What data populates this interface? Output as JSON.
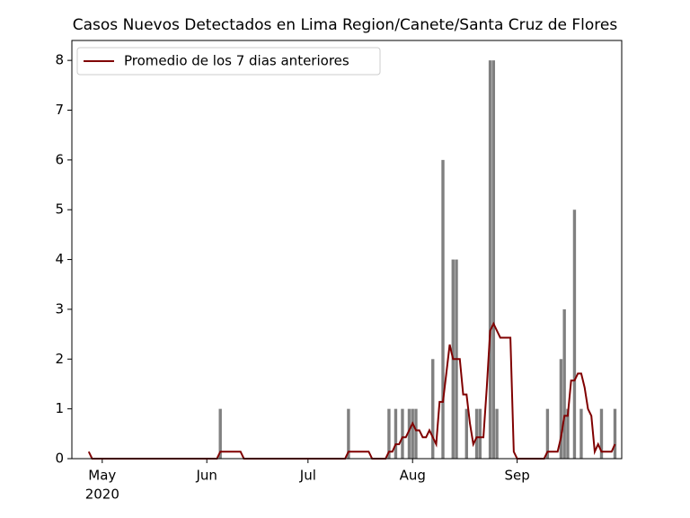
{
  "chart_data": {
    "type": "bar",
    "title": "Casos Nuevos Detectados en Lima Region/Canete/Santa Cruz de Flores",
    "categories": [
      null,
      null,
      null,
      null,
      "May",
      null,
      null,
      null,
      null,
      null,
      null,
      null,
      null,
      null,
      null,
      null,
      null,
      null,
      null,
      null,
      null,
      null,
      null,
      null,
      null,
      null,
      null,
      null,
      null,
      null,
      null,
      null,
      null,
      null,
      null,
      "Jun",
      null,
      null,
      null,
      null,
      null,
      null,
      null,
      null,
      null,
      null,
      null,
      null,
      null,
      null,
      null,
      null,
      null,
      null,
      null,
      null,
      null,
      null,
      null,
      null,
      null,
      null,
      null,
      null,
      null,
      "Jul",
      null,
      null,
      null,
      null,
      null,
      null,
      null,
      null,
      null,
      null,
      null,
      null,
      null,
      null,
      null,
      null,
      null,
      null,
      null,
      null,
      null,
      null,
      null,
      null,
      null,
      null,
      null,
      null,
      null,
      null,
      "Aug",
      null,
      null,
      null,
      null,
      null,
      null,
      null,
      null,
      null,
      null,
      null,
      null,
      null,
      null,
      null,
      null,
      null,
      null,
      null,
      null,
      null,
      null,
      null,
      null,
      null,
      null,
      null,
      null,
      null,
      null,
      "Sep",
      null,
      null,
      null,
      null,
      null,
      null,
      null,
      null,
      null,
      null,
      null,
      null,
      null,
      null,
      null,
      null,
      null,
      null,
      null,
      null,
      null,
      null,
      null,
      null,
      null,
      null,
      null,
      null,
      null
    ],
    "year_label": "2020",
    "values": [
      0,
      0,
      0,
      0,
      0,
      0,
      0,
      0,
      0,
      0,
      0,
      0,
      0,
      0,
      0,
      0,
      0,
      0,
      0,
      0,
      0,
      0,
      0,
      0,
      0,
      0,
      0,
      0,
      0,
      0,
      0,
      0,
      0,
      0,
      0,
      0,
      0,
      0,
      0,
      1,
      0,
      0,
      0,
      0,
      0,
      0,
      0,
      0,
      0,
      0,
      0,
      0,
      0,
      0,
      0,
      0,
      0,
      0,
      0,
      0,
      0,
      0,
      0,
      0,
      0,
      0,
      0,
      0,
      0,
      0,
      0,
      0,
      0,
      0,
      0,
      0,
      0,
      1,
      0,
      0,
      0,
      0,
      0,
      0,
      0,
      0,
      0,
      0,
      0,
      1,
      0,
      1,
      0,
      1,
      0,
      1,
      1,
      1,
      0,
      0,
      0,
      0,
      2,
      0,
      0,
      6,
      0,
      0,
      4,
      4,
      0,
      0,
      1,
      0,
      0,
      1,
      1,
      0,
      0,
      8,
      8,
      1,
      0,
      0,
      0,
      0,
      0,
      0,
      0,
      0,
      0,
      0,
      0,
      0,
      0,
      0,
      1,
      0,
      0,
      0,
      2,
      3,
      1,
      0,
      5,
      0,
      1,
      0,
      0,
      0,
      0,
      0,
      1,
      0,
      0,
      0,
      1
    ],
    "color": "#808080",
    "series": [
      {
        "name": "Promedio de los 7 dias anteriores",
        "color": "#800000",
        "type": "line",
        "values": [
          0.14,
          0,
          0,
          0,
          0,
          0,
          0,
          0,
          0,
          0,
          0,
          0,
          0,
          0,
          0,
          0,
          0,
          0,
          0,
          0,
          0,
          0,
          0,
          0,
          0,
          0,
          0,
          0,
          0,
          0,
          0,
          0,
          0,
          0,
          0,
          0,
          0,
          0,
          0,
          0.14,
          0.14,
          0.14,
          0.14,
          0.14,
          0.14,
          0.14,
          0,
          0,
          0,
          0,
          0,
          0,
          0,
          0,
          0,
          0,
          0,
          0,
          0,
          0,
          0,
          0,
          0,
          0,
          0,
          0,
          0,
          0,
          0,
          0,
          0,
          0,
          0,
          0,
          0,
          0,
          0,
          0.14,
          0.14,
          0.14,
          0.14,
          0.14,
          0.14,
          0.14,
          0,
          0,
          0,
          0,
          0,
          0.14,
          0.14,
          0.29,
          0.29,
          0.43,
          0.43,
          0.57,
          0.71,
          0.57,
          0.57,
          0.43,
          0.43,
          0.57,
          0.43,
          0.29,
          1.14,
          1.14,
          1.71,
          2.29,
          2.0,
          2.0,
          2.0,
          1.29,
          1.29,
          0.71,
          0.29,
          0.43,
          0.43,
          0.43,
          1.43,
          2.57,
          2.71,
          2.57,
          2.43,
          2.43,
          2.43,
          2.43,
          0.14,
          0,
          0,
          0,
          0,
          0,
          0,
          0,
          0,
          0,
          0.14,
          0.14,
          0.14,
          0.14,
          0.43,
          0.86,
          0.86,
          1.57,
          1.57,
          1.71,
          1.71,
          1.43,
          1.0,
          0.86,
          0.14,
          0.29,
          0.14,
          0.14,
          0.14,
          0.14,
          0.29
        ]
      }
    ],
    "ylim": [
      0,
      8.4
    ],
    "yticks": [
      0,
      1,
      2,
      3,
      4,
      5,
      6,
      7,
      8
    ],
    "legend": "upper left",
    "grid": false
  }
}
